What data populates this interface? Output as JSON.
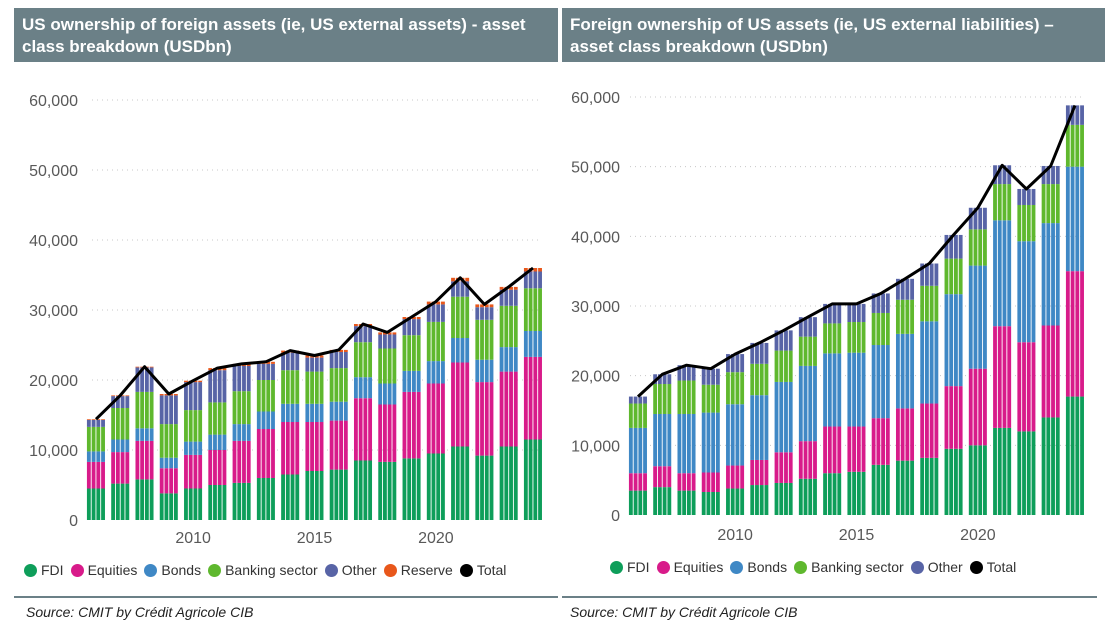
{
  "colors": {
    "fdi": "#0e9e5a",
    "equities": "#d81b8a",
    "bonds": "#3f88c5",
    "banking": "#5fb82e",
    "other": "#5864a6",
    "reserve": "#e8571b",
    "total": "#000000",
    "title_bg": "#6b8087"
  },
  "left": {
    "title": "US ownership of foreign assets (ie, US external assets) - asset class breakdown (USDbn)",
    "source": "Source: CMIT by Crédit Agricole CIB",
    "legend": [
      {
        "key": "fdi",
        "label": "FDI"
      },
      {
        "key": "equities",
        "label": "Equities"
      },
      {
        "key": "bonds",
        "label": "Bonds"
      },
      {
        "key": "banking",
        "label": "Banking sector"
      },
      {
        "key": "other",
        "label": "Other"
      },
      {
        "key": "reserve",
        "label": "Reserve"
      },
      {
        "key": "total",
        "label": "Total"
      }
    ]
  },
  "right": {
    "title": "Foreign ownership of US assets (ie, US external liabilities) – asset class breakdown (USDbn)",
    "source": "Source: CMIT by Crédit Agricole CIB",
    "legend": [
      {
        "key": "fdi",
        "label": "FDI"
      },
      {
        "key": "equities",
        "label": "Equities"
      },
      {
        "key": "bonds",
        "label": "Bonds"
      },
      {
        "key": "banking",
        "label": "Banking sector"
      },
      {
        "key": "other",
        "label": "Other"
      },
      {
        "key": "total",
        "label": "Total"
      }
    ]
  },
  "chart_data": [
    {
      "type": "bar",
      "stacked": true,
      "title": "US ownership of foreign assets (ie, US external assets) - asset class breakdown (USDbn)",
      "xlabel": "",
      "ylabel": "",
      "x": [
        "2006",
        "2007",
        "2008",
        "2009",
        "2010",
        "2011",
        "2012",
        "2013",
        "2014",
        "2015",
        "2016",
        "2017",
        "2018",
        "2019",
        "2020",
        "2021",
        "2022",
        "2023",
        "2024"
      ],
      "x_ticks": [
        "2010",
        "2015",
        "2020"
      ],
      "y_ticks": [
        "0",
        "10,000",
        "20,000",
        "30,000",
        "40,000",
        "50,000",
        "60,000"
      ],
      "ylim": [
        0,
        60000
      ],
      "grid": "horizontal dotted",
      "legend_position": "bottom",
      "series": [
        {
          "name": "FDI",
          "color_key": "fdi",
          "values": [
            4500,
            5200,
            5800,
            3800,
            4500,
            5000,
            5300,
            6000,
            6500,
            7000,
            7200,
            8500,
            8300,
            8800,
            9500,
            10500,
            9200,
            10500,
            11500
          ]
        },
        {
          "name": "Equities",
          "color_key": "equities",
          "values": [
            3800,
            4500,
            5500,
            3600,
            4800,
            5000,
            6000,
            7000,
            7500,
            7000,
            7000,
            8900,
            8200,
            9500,
            10000,
            12000,
            10500,
            10700,
            11800
          ]
        },
        {
          "name": "Bonds",
          "color_key": "bonds",
          "values": [
            1500,
            1800,
            1800,
            1500,
            1900,
            2200,
            2400,
            2500,
            2600,
            2600,
            2700,
            3000,
            3000,
            3000,
            3200,
            3500,
            3200,
            3500,
            3700
          ]
        },
        {
          "name": "Banking sector",
          "color_key": "banking",
          "values": [
            3500,
            4500,
            5200,
            4800,
            4500,
            4600,
            4700,
            4500,
            4800,
            4600,
            4800,
            5000,
            5000,
            5100,
            5600,
            5900,
            5700,
            5900,
            6100
          ]
        },
        {
          "name": "Other",
          "color_key": "other",
          "values": [
            1000,
            1700,
            3500,
            4100,
            4000,
            4600,
            3600,
            2300,
            2500,
            2000,
            2300,
            2300,
            2000,
            2300,
            2500,
            2200,
            1800,
            2300,
            2400
          ]
        },
        {
          "name": "Reserve",
          "color_key": "reserve",
          "values": [
            100,
            100,
            100,
            200,
            200,
            300,
            300,
            300,
            300,
            300,
            300,
            300,
            300,
            300,
            400,
            500,
            400,
            400,
            500
          ]
        }
      ],
      "total": {
        "name": "Total",
        "color_key": "total",
        "values": [
          14400,
          17800,
          21900,
          18000,
          19900,
          21700,
          22300,
          22600,
          24200,
          23500,
          24300,
          28000,
          26800,
          29000,
          31200,
          34600,
          30800,
          33300,
          36000
        ]
      }
    },
    {
      "type": "bar",
      "stacked": true,
      "title": "Foreign ownership of US assets (ie, US external liabilities) – asset class breakdown (USDbn)",
      "xlabel": "",
      "ylabel": "",
      "x": [
        "2006",
        "2007",
        "2008",
        "2009",
        "2010",
        "2011",
        "2012",
        "2013",
        "2014",
        "2015",
        "2016",
        "2017",
        "2018",
        "2019",
        "2020",
        "2021",
        "2022",
        "2023",
        "2024"
      ],
      "x_ticks": [
        "2010",
        "2015",
        "2020"
      ],
      "y_ticks": [
        "0",
        "10,000",
        "20,000",
        "30,000",
        "40,000",
        "50,000",
        "60,000"
      ],
      "ylim": [
        0,
        62000
      ],
      "grid": "horizontal dotted",
      "legend_position": "bottom",
      "series": [
        {
          "name": "FDI",
          "color_key": "fdi",
          "values": [
            3500,
            4000,
            3500,
            3300,
            3800,
            4300,
            4600,
            5200,
            6000,
            6200,
            7200,
            7800,
            8200,
            9500,
            10000,
            12500,
            12000,
            14000,
            17000
          ]
        },
        {
          "name": "Equities",
          "color_key": "equities",
          "values": [
            2500,
            3000,
            2500,
            2800,
            3300,
            3600,
            4400,
            5400,
            6700,
            6500,
            6700,
            7500,
            7800,
            9000,
            11000,
            14600,
            12800,
            13200,
            18000
          ]
        },
        {
          "name": "Bonds",
          "color_key": "bonds",
          "values": [
            6500,
            7500,
            8500,
            8600,
            8800,
            9300,
            10100,
            10800,
            10500,
            10600,
            10500,
            10700,
            11800,
            13200,
            14800,
            15200,
            14500,
            14700,
            15000
          ]
        },
        {
          "name": "Banking sector",
          "color_key": "banking",
          "values": [
            3500,
            4300,
            4800,
            4000,
            4600,
            4500,
            4500,
            4200,
            4300,
            4400,
            4600,
            4900,
            5100,
            5100,
            5200,
            5200,
            5200,
            5600,
            6000
          ]
        },
        {
          "name": "Other",
          "color_key": "other",
          "values": [
            1000,
            1400,
            2200,
            2300,
            2600,
            3000,
            2900,
            2800,
            2800,
            2600,
            2800,
            3000,
            3200,
            3400,
            3100,
            2700,
            2300,
            2600,
            2800
          ]
        }
      ],
      "total": {
        "name": "Total",
        "color_key": "total",
        "values": [
          17000,
          20200,
          21500,
          21000,
          23100,
          24700,
          26500,
          28400,
          30300,
          30300,
          31800,
          33900,
          36100,
          40200,
          44100,
          50200,
          46800,
          50100,
          58800
        ]
      }
    }
  ]
}
